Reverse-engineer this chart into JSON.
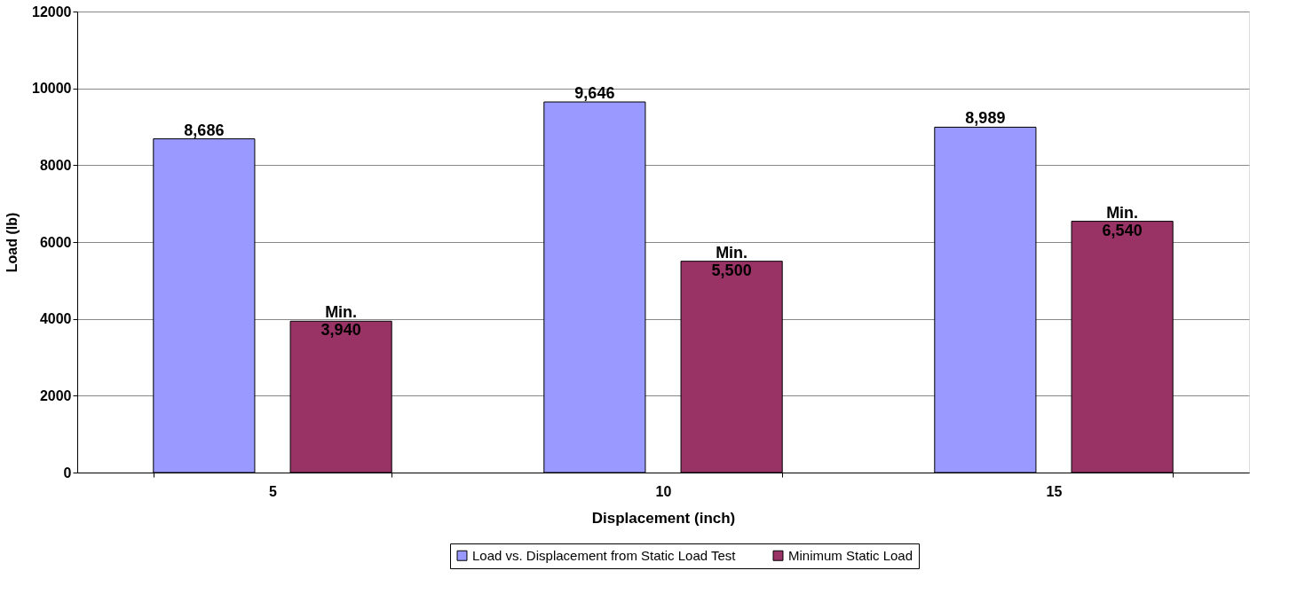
{
  "chart_data": {
    "type": "bar",
    "xlabel": "Displacement  (inch)",
    "ylabel": "Load (lb)",
    "categories": [
      "5",
      "10",
      "15"
    ],
    "series": [
      {
        "name": "Load vs. Displacement from Static Load Test",
        "color": "#9999ff",
        "values": [
          8686,
          9646,
          8989
        ],
        "value_labels": [
          "8,686",
          "9,646",
          "8,989"
        ]
      },
      {
        "name": "Minimum Static Load",
        "color": "#993366",
        "values": [
          3940,
          5500,
          6540
        ],
        "value_labels": [
          "Min.\n3,940",
          "Min.\n5,500",
          "Min.\n6,540"
        ]
      }
    ],
    "ylim": [
      0,
      12000
    ],
    "yticks": [
      0,
      2000,
      4000,
      6000,
      8000,
      10000,
      12000
    ],
    "grid": "y",
    "legend": "bottom"
  }
}
